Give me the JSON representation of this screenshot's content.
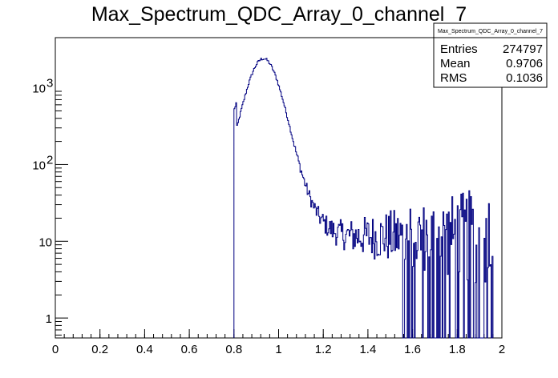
{
  "chart_data": {
    "type": "histogram",
    "title": "Max_Spectrum_QDC_Array_0_channel_7",
    "xlabel": "",
    "ylabel": "",
    "xlim": [
      0,
      2
    ],
    "ylog": true,
    "ylim": [
      0.55,
      4500
    ],
    "x_ticks": [
      0,
      0.2,
      0.4,
      0.6,
      0.8,
      1,
      1.2,
      1.4,
      1.6,
      1.8,
      2
    ],
    "x_tick_labels": [
      "0",
      "0.2",
      "0.4",
      "0.6",
      "0.8",
      "1",
      "1.2",
      "1.4",
      "1.6",
      "1.8",
      "2"
    ],
    "y_ticks": [
      1,
      10,
      100,
      1000
    ],
    "line_color": "#000080",
    "stats": {
      "title": "Max_Spectrum_QDC_Array_0_channel_7",
      "rows": [
        {
          "label": "Entries",
          "value": "274797"
        },
        {
          "label": "Mean",
          "value": "0.9706"
        },
        {
          "label": "RMS",
          "value": "0.1036"
        }
      ]
    }
  }
}
